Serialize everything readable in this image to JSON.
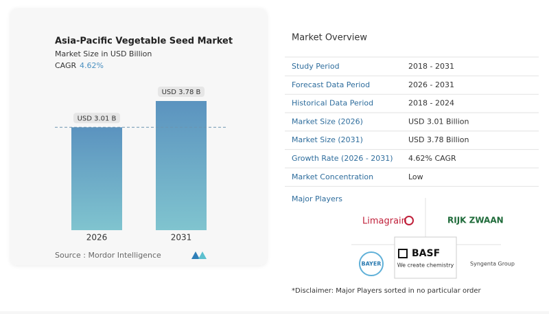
{
  "chart_data": {
    "type": "bar",
    "title": "Asia-Pacific Vegetable Seed Market",
    "subtitle": "Market Size in USD Billion",
    "cagr_label": "CAGR",
    "cagr_value": "4.62%",
    "categories": [
      "2026",
      "2031"
    ],
    "values": [
      3.01,
      3.78
    ],
    "value_labels": [
      "USD 3.01 B",
      "USD 3.78 B"
    ],
    "color": "#5b93bf",
    "source": "Source : Mordor Intelligence"
  },
  "overview": {
    "title": "Market Overview",
    "rows": [
      [
        "Study Period",
        "2018 - 2031"
      ],
      [
        "Forecast Data Period",
        "2026 - 2031"
      ],
      [
        "Historical Data Period",
        "2018 - 2024"
      ],
      [
        "Market Size (2026)",
        "USD 3.01 Billion"
      ],
      [
        "Market Size (2031)",
        "USD 3.78 Billion"
      ],
      [
        "Growth Rate (2026 - 2031)",
        "4.62% CAGR"
      ],
      [
        "Market Concentration",
        "Low"
      ]
    ]
  },
  "players": {
    "title": "Major Players",
    "logos": [
      "Limagrain",
      "RIJK ZWAAN",
      "BAYER",
      "BASF",
      "We create chemistry",
      "Syngenta Group"
    ],
    "disclaimer": "*Disclaimer: Major Players sorted in no particular order"
  }
}
